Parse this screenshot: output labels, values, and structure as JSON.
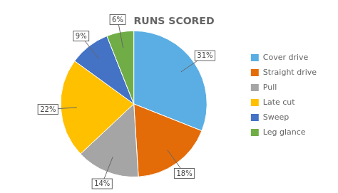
{
  "chart_data": {
    "type": "pie",
    "title": "RUNS SCORED",
    "categories": [
      "Cover drive",
      "Straight drive",
      "Pull",
      "Late cut",
      "Sweep",
      "Leg glance"
    ],
    "values": [
      31,
      18,
      14,
      22,
      9,
      6
    ],
    "value_labels": [
      "31%",
      "18%",
      "14%",
      "22%",
      "9%",
      "6%"
    ],
    "colors": [
      "#5baee3",
      "#e36c09",
      "#a5a5a5",
      "#ffc000",
      "#4472c4",
      "#70ad47"
    ],
    "data_labels": true,
    "legend": "right"
  }
}
